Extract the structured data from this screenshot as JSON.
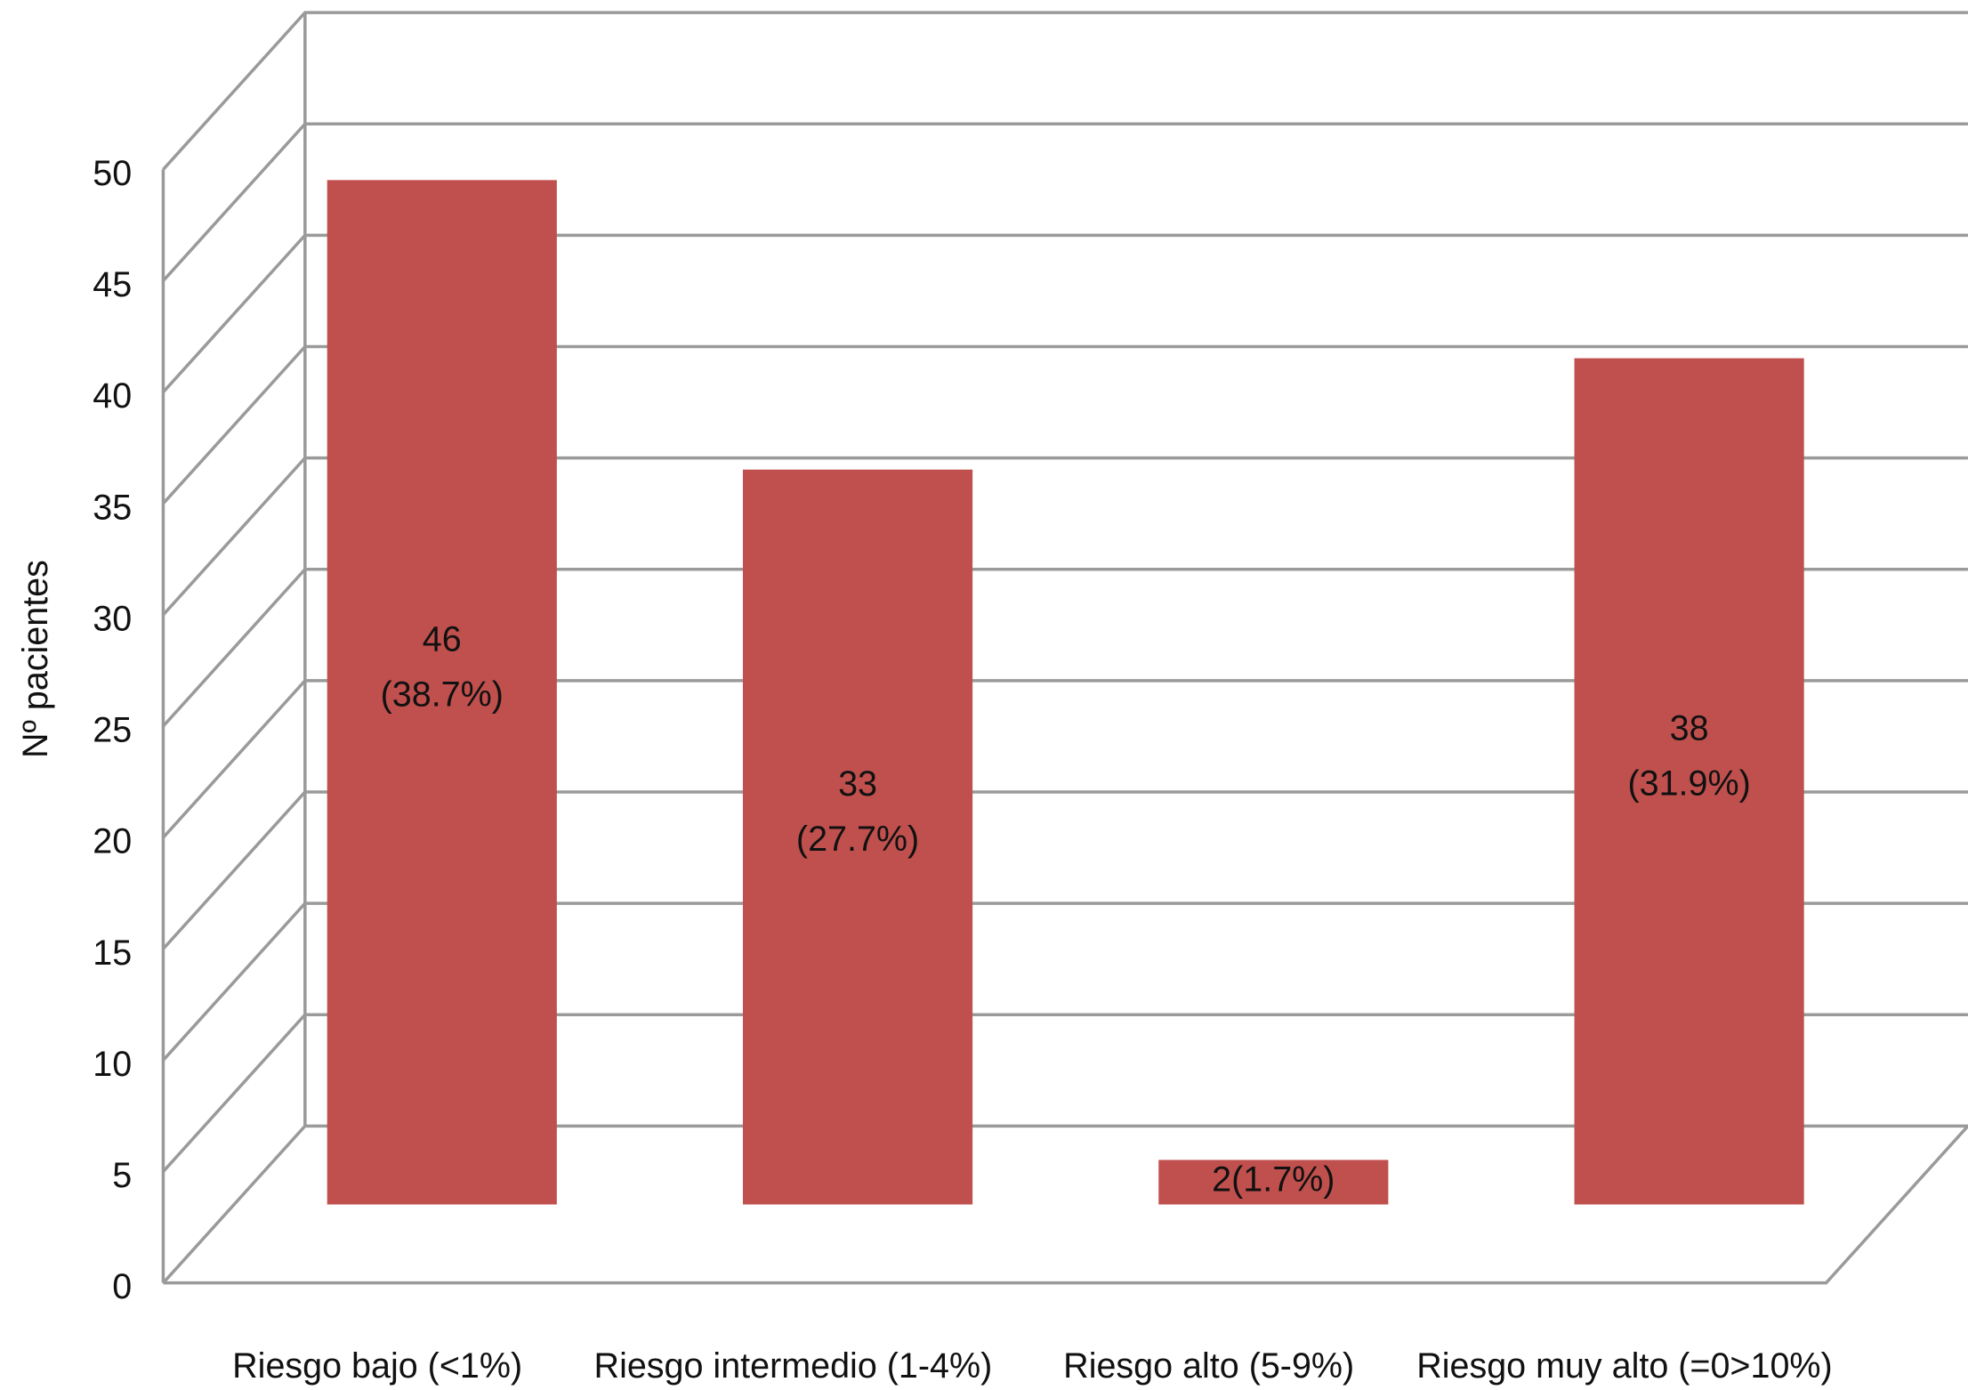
{
  "chart_data": {
    "type": "bar",
    "y_label": "Nº pacientes",
    "categories": [
      "Riesgo bajo (<1%)",
      "Riesgo intermedio (1-4%)",
      "Riesgo alto (5-9%)",
      "Riesgo muy alto (=0>10%)"
    ],
    "values": [
      46,
      33,
      2,
      38
    ],
    "value_labels": [
      "46\n(38.7%)",
      "33\n(27.7%)",
      "2(1.7%)",
      "38\n(31.9%)"
    ],
    "color": "#c0504d",
    "ylim": [
      0,
      50
    ],
    "yticks": [
      0,
      5,
      10,
      15,
      20,
      25,
      30,
      35,
      40,
      45,
      50
    ],
    "grid": true
  }
}
